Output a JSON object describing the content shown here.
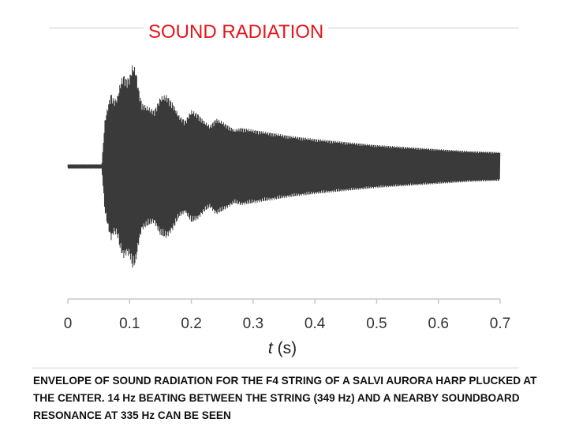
{
  "title": "SOUND RADIATION",
  "caption": "ENVELOPE OF SOUND RADIATION FOR THE F4 STRING OF A SALVI AURORA HARP PLUCKED AT THE CENTER.  14 Hz BEATING BETWEEN THE STRING (349 Hz) AND A NEARBY SOUNDBOARD RESONANCE AT 335 Hz CAN BE SEEN",
  "chart_data": {
    "type": "line",
    "title": "SOUND RADIATION",
    "xlabel_var": "t",
    "xlabel_unit": "(s)",
    "xlim": [
      0,
      0.7
    ],
    "ylim": [
      -1,
      1
    ],
    "x_ticks": [
      "0",
      "0.1",
      "0.2",
      "0.3",
      "0.4",
      "0.5",
      "0.6",
      "0.7"
    ],
    "x_tick_values": [
      0,
      0.1,
      0.2,
      0.3,
      0.4,
      0.5,
      0.6,
      0.7
    ],
    "grid": false,
    "series_color": "#3a3a3a",
    "envelope": {
      "t": [
        0,
        0.055,
        0.06,
        0.065,
        0.07,
        0.075,
        0.08,
        0.085,
        0.09,
        0.095,
        0.1,
        0.105,
        0.11,
        0.115,
        0.12,
        0.13,
        0.14,
        0.15,
        0.16,
        0.17,
        0.18,
        0.19,
        0.2,
        0.21,
        0.22,
        0.23,
        0.24,
        0.25,
        0.26,
        0.27,
        0.28,
        0.3,
        0.33,
        0.36,
        0.4,
        0.45,
        0.5,
        0.55,
        0.6,
        0.65,
        0.7
      ],
      "amplitude": [
        0.02,
        0.02,
        0.45,
        0.6,
        0.72,
        0.65,
        0.68,
        0.82,
        0.9,
        0.86,
        0.88,
        1.0,
        0.95,
        0.75,
        0.62,
        0.58,
        0.55,
        0.68,
        0.7,
        0.62,
        0.5,
        0.45,
        0.55,
        0.52,
        0.45,
        0.4,
        0.47,
        0.44,
        0.4,
        0.36,
        0.38,
        0.36,
        0.33,
        0.3,
        0.27,
        0.24,
        0.21,
        0.19,
        0.17,
        0.15,
        0.14
      ]
    }
  }
}
